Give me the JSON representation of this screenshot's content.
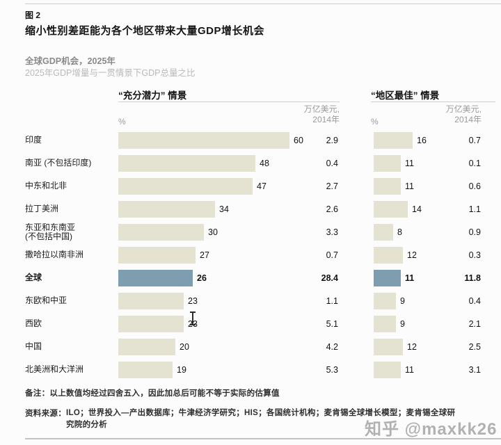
{
  "figure": {
    "fig_label": "图 2",
    "title": "缩小性别差距能为各个地区带来大量GDP增长机会",
    "subtitle1": "全球GDP机会，2025年",
    "subtitle2": "2025年GDP增量与一贯情景下GDP总量之比"
  },
  "panels": {
    "left": {
      "header": "“充分潜力” 情景",
      "pct_label": "%",
      "unit_label": "万亿美元,\n2014年"
    },
    "right": {
      "header": "“地区最佳” 情景",
      "pct_label": "%",
      "unit_label": "万亿美元,\n2014年"
    }
  },
  "rows": [
    {
      "label": "印度",
      "label2": "",
      "fp_pct": 60,
      "fp_tn": "2.9",
      "rb_pct": 16,
      "rb_tn": "0.7",
      "bold": false
    },
    {
      "label": "南亚 (不包括印度)",
      "label2": "",
      "fp_pct": 48,
      "fp_tn": "0.4",
      "rb_pct": 11,
      "rb_tn": "0.1",
      "bold": false
    },
    {
      "label": "中东和北非",
      "label2": "",
      "fp_pct": 47,
      "fp_tn": "2.7",
      "rb_pct": 11,
      "rb_tn": "0.6",
      "bold": false
    },
    {
      "label": "拉丁美洲",
      "label2": "",
      "fp_pct": 34,
      "fp_tn": "2.6",
      "rb_pct": 14,
      "rb_tn": "1.1",
      "bold": false
    },
    {
      "label": "东亚和东南亚",
      "label2": "(不包括中国)",
      "fp_pct": 30,
      "fp_tn": "3.3",
      "rb_pct": 8,
      "rb_tn": "0.9",
      "bold": false
    },
    {
      "label": "撒哈拉以南非洲",
      "label2": "",
      "fp_pct": 27,
      "fp_tn": "0.7",
      "rb_pct": 12,
      "rb_tn": "0.3",
      "bold": false
    },
    {
      "label": "全球",
      "label2": "",
      "fp_pct": 26,
      "fp_tn": "28.4",
      "rb_pct": 11,
      "rb_tn": "11.8",
      "bold": true
    },
    {
      "label": "东欧和中亚",
      "label2": "",
      "fp_pct": 23,
      "fp_tn": "1.1",
      "rb_pct": 9,
      "rb_tn": "0.4",
      "bold": false
    },
    {
      "label": "西欧",
      "label2": "",
      "fp_pct": 23,
      "fp_tn": "5.1",
      "rb_pct": 9,
      "rb_tn": "2.1",
      "bold": false
    },
    {
      "label": "中国",
      "label2": "",
      "fp_pct": 20,
      "fp_tn": "4.2",
      "rb_pct": 12,
      "rb_tn": "2.5",
      "bold": false
    },
    {
      "label": "北美洲和大洋洲",
      "label2": "",
      "fp_pct": 19,
      "fp_tn": "5.3",
      "rb_pct": 11,
      "rb_tn": "3.1",
      "bold": false
    }
  ],
  "notes": {
    "remark": "备注：以上数值均经过四舍五入，因此加总后可能不等于实际的估算值",
    "source_label": "资料来源：",
    "source_body": "ILO；世界投入—产出数据库；牛津经济学研究；HIS；各国统计机构；麦肯锡全球增长模型；麦肯锡全球研究院的分析"
  },
  "watermark": "知乎 @maxkk26",
  "colors": {
    "bar_beige": "#e4e3d1",
    "bar_blue": "#7e9dae",
    "rule_gray": "#cfcfcf"
  },
  "chart_data": {
    "type": "bar",
    "orientation": "horizontal",
    "title": "缩小性别差距能为各个地区带来大量GDP增长机会",
    "subtitle": "全球GDP机会，2025年；2025年GDP增量与一贯情景下GDP总量之比",
    "categories": [
      "印度",
      "南亚 (不包括印度)",
      "中东和北非",
      "拉丁美洲",
      "东亚和东南亚 (不包括中国)",
      "撒哈拉以南非洲",
      "全球",
      "东欧和中亚",
      "西欧",
      "中国",
      "北美洲和大洋洲"
    ],
    "series": [
      {
        "name": "“充分潜力”情景 %",
        "values": [
          60,
          48,
          47,
          34,
          30,
          27,
          26,
          23,
          23,
          20,
          19
        ]
      },
      {
        "name": "“充分潜力”情景 万亿美元(2014年)",
        "values": [
          2.9,
          0.4,
          2.7,
          2.6,
          3.3,
          0.7,
          28.4,
          1.1,
          5.1,
          4.2,
          5.3
        ]
      },
      {
        "name": "“地区最佳”情景 %",
        "values": [
          16,
          11,
          11,
          14,
          8,
          12,
          11,
          9,
          9,
          12,
          11
        ]
      },
      {
        "name": "“地区最佳”情景 万亿美元(2014年)",
        "values": [
          0.7,
          0.1,
          0.6,
          1.1,
          0.9,
          0.3,
          11.8,
          0.4,
          2.1,
          2.5,
          3.1
        ]
      }
    ],
    "highlight_category": "全球",
    "legend_position": "none",
    "grid": false,
    "value_labels": true
  }
}
